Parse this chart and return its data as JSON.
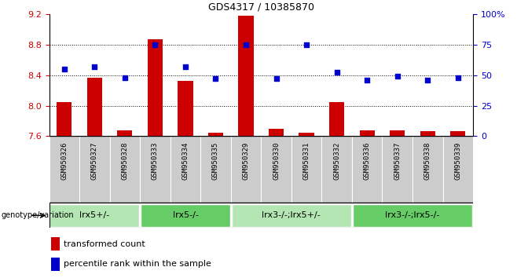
{
  "title": "GDS4317 / 10385870",
  "samples": [
    "GSM950326",
    "GSM950327",
    "GSM950328",
    "GSM950333",
    "GSM950334",
    "GSM950335",
    "GSM950329",
    "GSM950330",
    "GSM950331",
    "GSM950332",
    "GSM950336",
    "GSM950337",
    "GSM950338",
    "GSM950339"
  ],
  "bar_values": [
    8.05,
    8.37,
    7.68,
    8.87,
    8.32,
    7.65,
    9.18,
    7.7,
    7.65,
    8.05,
    7.68,
    7.68,
    7.67,
    7.67
  ],
  "dot_values": [
    55,
    57,
    48,
    75,
    57,
    47,
    75,
    47,
    75,
    52,
    46,
    49,
    46,
    48
  ],
  "bar_base": 7.6,
  "ylim_left": [
    7.6,
    9.2
  ],
  "ylim_right": [
    0,
    100
  ],
  "yticks_left": [
    7.6,
    8.0,
    8.4,
    8.8,
    9.2
  ],
  "yticks_right": [
    0,
    25,
    50,
    75,
    100
  ],
  "ytick_labels_right": [
    "0",
    "25",
    "50",
    "75",
    "100%"
  ],
  "bar_color": "#cc0000",
  "dot_color": "#0000cc",
  "groups": [
    {
      "label": "lrx5+/-",
      "start": 0,
      "end": 3,
      "color": "#b3e6b3"
    },
    {
      "label": "lrx5-/-",
      "start": 3,
      "end": 6,
      "color": "#66cc66"
    },
    {
      "label": "lrx3-/-;lrx5+/-",
      "start": 6,
      "end": 10,
      "color": "#b3e6b3"
    },
    {
      "label": "lrx3-/-;lrx5-/-",
      "start": 10,
      "end": 14,
      "color": "#66cc66"
    }
  ],
  "group_label": "genotype/variation",
  "legend_bar_label": "transformed count",
  "legend_dot_label": "percentile rank within the sample",
  "grid_values": [
    8.0,
    8.4,
    8.8
  ],
  "sample_bg_color": "#cccccc"
}
